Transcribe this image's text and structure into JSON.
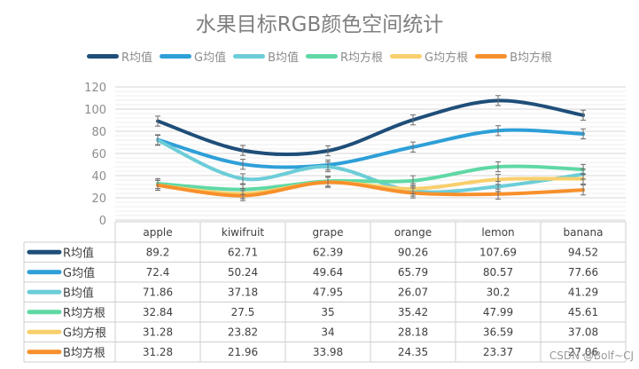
{
  "chart_data": {
    "type": "line",
    "title": "水果目标RGB颜色空间统计",
    "categories": [
      "apple",
      "kiwifruit",
      "grape",
      "orange",
      "lemon",
      "banana"
    ],
    "ylim": [
      0,
      120
    ],
    "yticks": [
      "0",
      "20",
      "40",
      "60",
      "80",
      "100",
      "120"
    ],
    "grid": true,
    "legend": "top",
    "smooth": true,
    "error_bars": true,
    "has_data_table": true,
    "series": [
      {
        "name": "R均值",
        "color": "#1f4e79",
        "values": [
          89.2,
          62.71,
          62.39,
          90.26,
          107.69,
          94.52
        ],
        "labels": [
          "89.2",
          "62.71",
          "62.39",
          "90.26",
          "107.69",
          "94.52"
        ]
      },
      {
        "name": "G均值",
        "color": "#2e9fd8",
        "values": [
          72.4,
          50.24,
          49.64,
          65.79,
          80.57,
          77.66
        ],
        "labels": [
          "72.4",
          "50.24",
          "49.64",
          "65.79",
          "80.57",
          "77.66"
        ]
      },
      {
        "name": "B均值",
        "color": "#6ccdd8",
        "values": [
          71.86,
          37.18,
          47.95,
          26.07,
          30.2,
          41.29
        ],
        "labels": [
          "71.86",
          "37.18",
          "47.95",
          "26.07",
          "30.2",
          "41.29"
        ]
      },
      {
        "name": "R均方根",
        "color": "#5fd8a5",
        "values": [
          32.84,
          27.5,
          35,
          35.42,
          47.99,
          45.61
        ],
        "labels": [
          "32.84",
          "27.5",
          "35",
          "35.42",
          "47.99",
          "45.61"
        ]
      },
      {
        "name": "G均方根",
        "color": "#f8cf6c",
        "values": [
          31.28,
          23.82,
          34,
          28.18,
          36.59,
          37.08
        ],
        "labels": [
          "31.28",
          "23.82",
          "34",
          "28.18",
          "36.59",
          "37.08"
        ]
      },
      {
        "name": "B均方根",
        "color": "#f7902c",
        "values": [
          31.28,
          21.96,
          33.98,
          24.35,
          23.37,
          27.06
        ],
        "labels": [
          "31.28",
          "21.96",
          "33.98",
          "24.35",
          "23.37",
          "27.06"
        ]
      }
    ]
  },
  "watermark": "CSDN @Bolf~CJ"
}
